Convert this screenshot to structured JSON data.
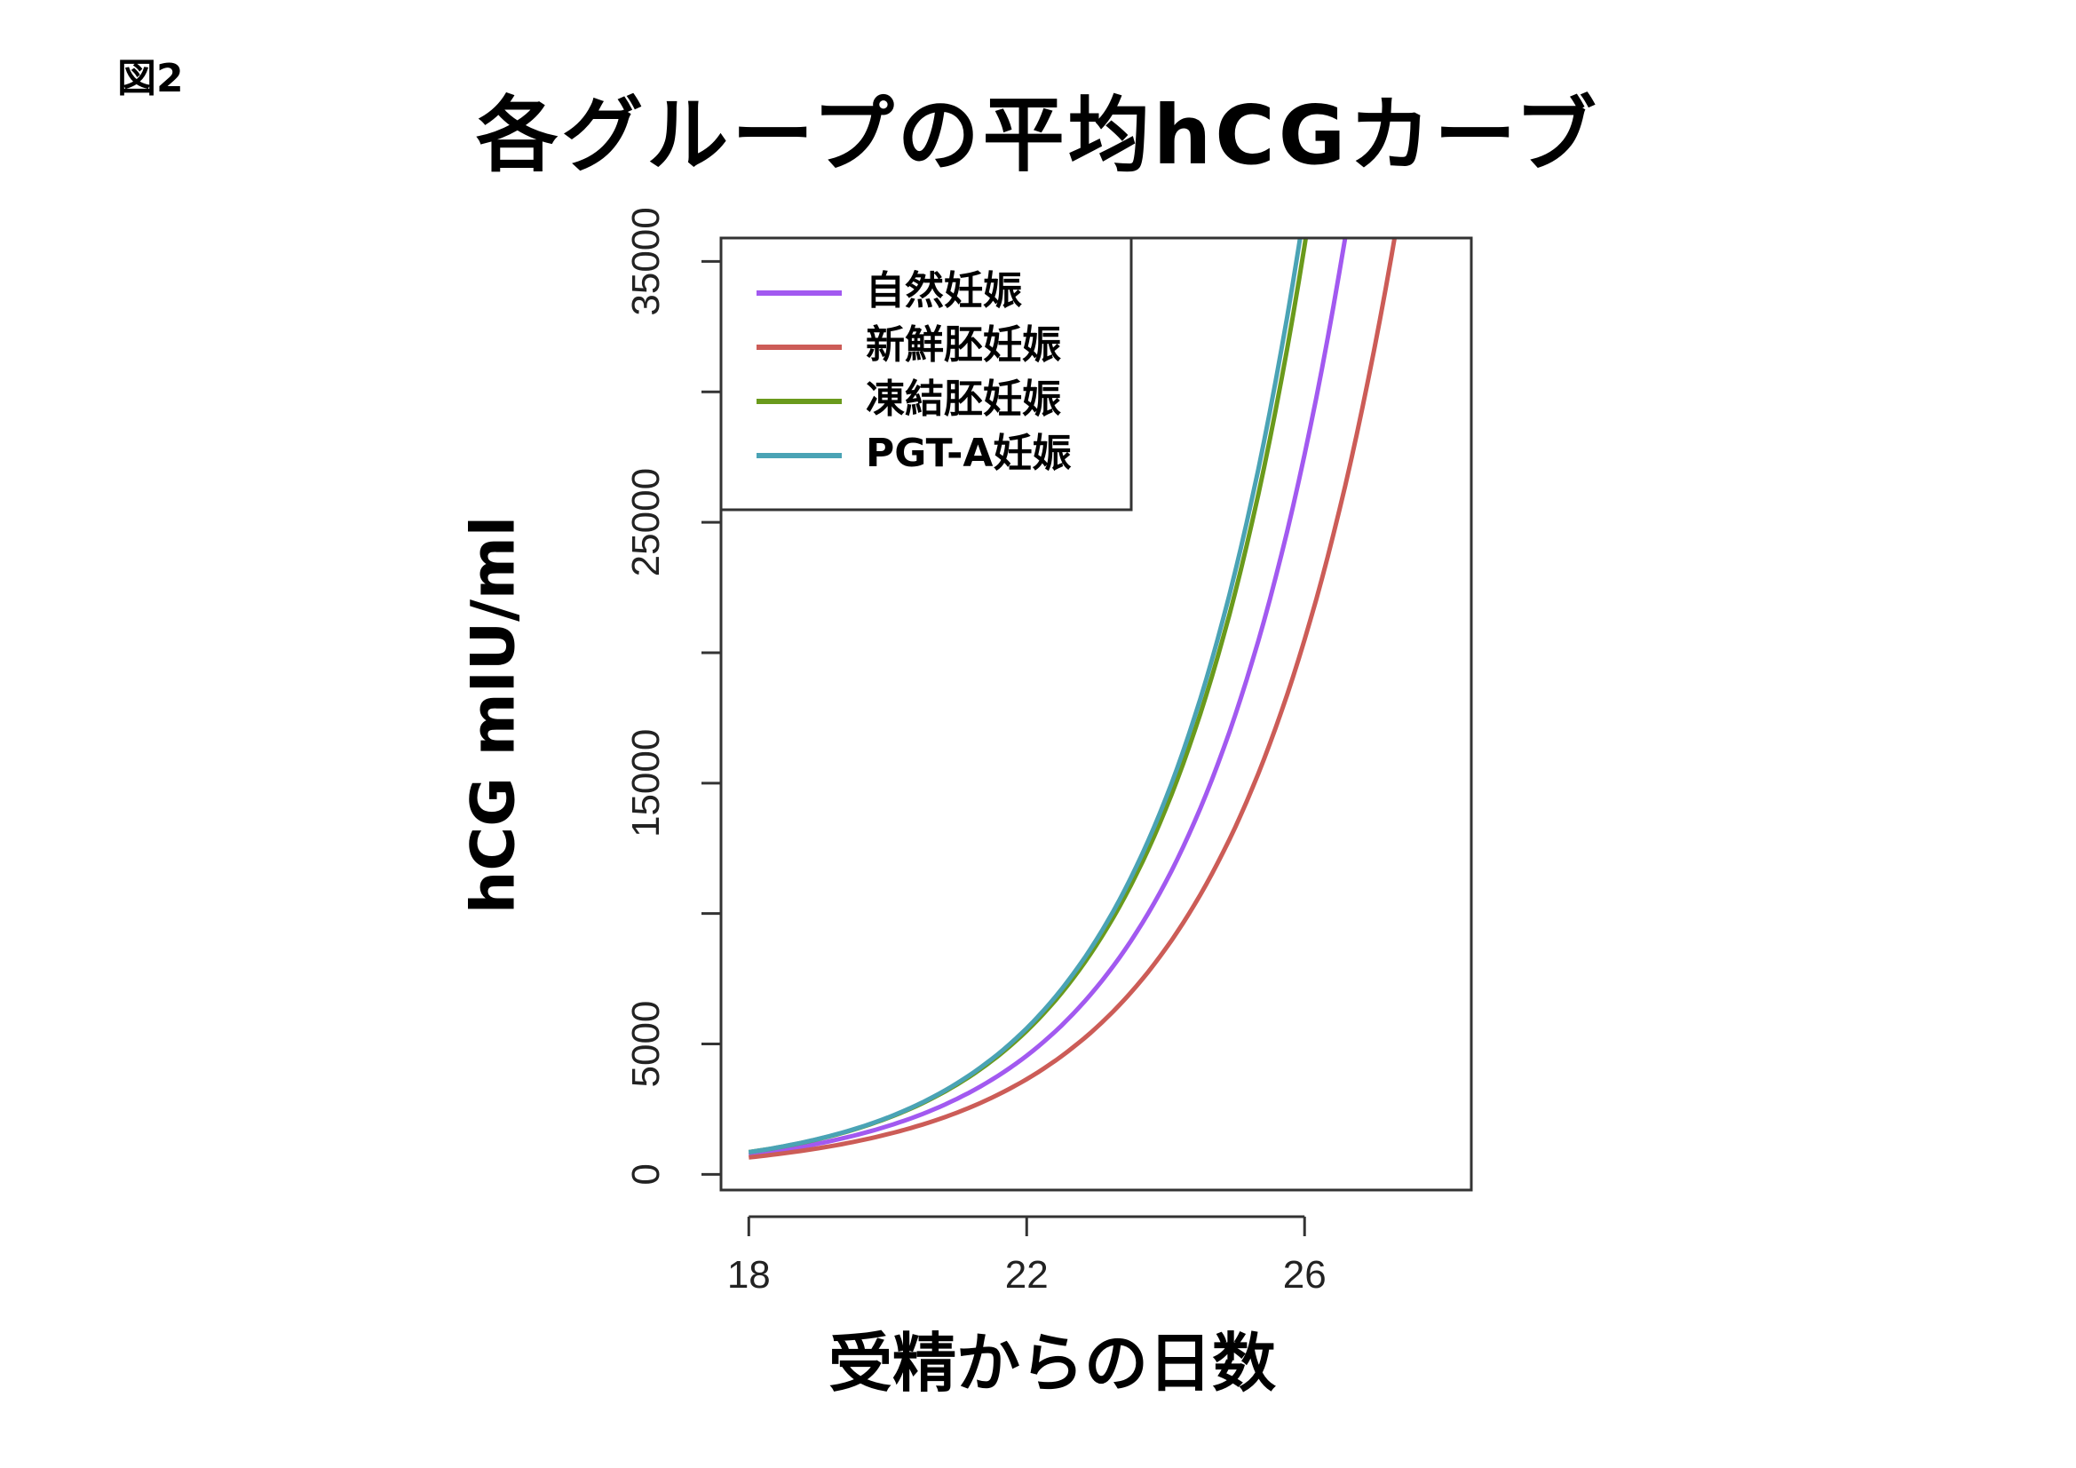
{
  "figure_label": "図2",
  "chart_data": {
    "type": "line",
    "title": "各グループの平均hCGカーブ",
    "xlabel": "受精からの日数",
    "ylabel": "hCG  mIU/ml",
    "x_ticks": [
      18,
      22,
      26
    ],
    "y_ticks": [
      0,
      5000,
      10000,
      15000,
      20000,
      25000,
      30000,
      35000
    ],
    "y_tick_labels": [
      "0",
      "5000",
      "15000",
      "25000",
      "35000"
    ],
    "xlim": [
      17.6,
      28.4
    ],
    "ylim": [
      -600,
      35900
    ],
    "legend_position": "top-left",
    "grid": false,
    "x": [
      18,
      19,
      20,
      21,
      22,
      23,
      24,
      25,
      26,
      27,
      28
    ],
    "series": [
      {
        "name": "自然妊娠",
        "color": "#a259f0",
        "values": [
          750,
          1180,
          1850,
          2900,
          4550,
          7150,
          11200,
          17600,
          27600,
          43300,
          null
        ]
      },
      {
        "name": "新鮮胚妊娠",
        "color": "#cc5c57",
        "values": [
          650,
          1000,
          1540,
          2370,
          3650,
          5620,
          8650,
          13300,
          20500,
          31600,
          48600
        ]
      },
      {
        "name": "凍結胚妊娠",
        "color": "#6a9a1c",
        "values": [
          850,
          1350,
          2160,
          3450,
          5500,
          8780,
          14000,
          22300,
          35600,
          null,
          null
        ]
      },
      {
        "name": "PGT-A妊娠",
        "color": "#4aa3b5",
        "values": [
          850,
          1360,
          2180,
          3500,
          5600,
          8980,
          14400,
          23100,
          37000,
          null,
          null
        ]
      }
    ]
  }
}
